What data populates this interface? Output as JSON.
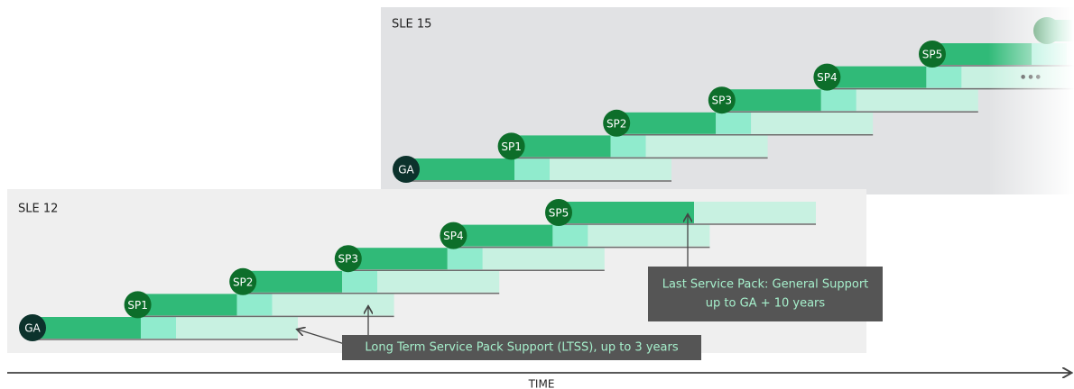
{
  "panels": [
    {
      "title": "SLE 15",
      "releases": [
        "GA",
        "SP1",
        "SP2",
        "SP3",
        "SP4",
        "SP5"
      ]
    },
    {
      "title": "SLE 12",
      "releases": [
        "GA",
        "SP1",
        "SP2",
        "SP3",
        "SP4",
        "SP5"
      ]
    }
  ],
  "more": "•••",
  "callouts": [
    {
      "lines": [
        "Long Term Service Pack Support (LTSS), up to 3 years"
      ]
    },
    {
      "lines": [
        "Last Service Pack: General Support",
        "up to GA + 10 years"
      ]
    }
  ],
  "axis_label": "TIME"
}
